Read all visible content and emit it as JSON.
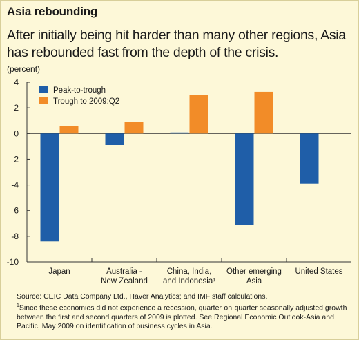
{
  "header": {
    "title": "Asia rebounding",
    "subtitle": "After initially being hit harder than many other regions, Asia has rebounded fast from the depth of the crisis.",
    "unit": "(percent)"
  },
  "footer": {
    "source": "Source: CEIC Data Company Ltd., Haver Analytics; and IMF staff calculations.",
    "footnote_mark": "1",
    "footnote": "Since these economies did not experience a recession, quarter-on-quarter seasonally adjusted growth between the first and second quarters of 2009 is plotted. See Regional Economic Outlook-Asia and Pacific, May 2009 on identification of business cycles in Asia."
  },
  "colors": {
    "peak": "#1f5ea8",
    "trough": "#f28c28",
    "background": "#fdf8d8"
  },
  "chart_data": {
    "type": "bar",
    "categories": [
      [
        "Japan"
      ],
      [
        "Australia -",
        "New Zealand"
      ],
      [
        "China, India,",
        "and Indonesia¹"
      ],
      [
        "Other emerging",
        "Asia"
      ],
      [
        "United States"
      ]
    ],
    "series": [
      {
        "name": "Peak-to-trough",
        "values": [
          -8.4,
          -0.9,
          0.0,
          -7.1,
          -3.9
        ]
      },
      {
        "name": "Trough to 2009:Q2",
        "values": [
          0.6,
          0.9,
          3.0,
          3.25,
          null
        ]
      }
    ],
    "yticks": [
      4,
      2,
      0,
      -2,
      -4,
      -6,
      -8,
      -10
    ],
    "ylim": [
      -10,
      4
    ],
    "legend_position": "top-left",
    "grid": false
  }
}
